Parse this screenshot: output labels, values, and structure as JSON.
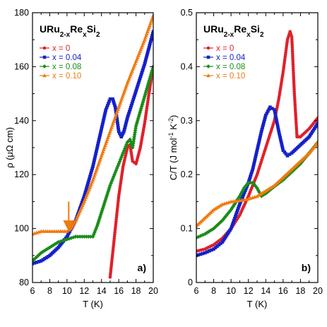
{
  "chart_data": [
    {
      "type": "line",
      "panel_label": "a)",
      "title_parts": [
        "URu",
        "2-x",
        "Re",
        "x",
        "Si",
        "2"
      ],
      "xlabel": "T (K)",
      "ylabel_parts": [
        "ρ (",
        "μΩ",
        " cm)"
      ],
      "xlim": [
        6,
        20
      ],
      "ylim": [
        80,
        180
      ],
      "xticks": [
        "6",
        "8",
        "10",
        "12",
        "14",
        "16",
        "18",
        "20"
      ],
      "yticks": [
        "80",
        "100",
        "120",
        "140",
        "160",
        "180"
      ],
      "legend_position": "top-left",
      "series": [
        {
          "name": "x = 0",
          "color": "#e0202a",
          "marker": "circle",
          "x": [
            15.0,
            15.5,
            16.0,
            16.5,
            17.0,
            17.3,
            17.6,
            18.0,
            18.5,
            19.0,
            19.5,
            20.0
          ],
          "y": [
            82,
            97,
            112,
            123,
            130,
            131,
            125,
            124,
            130,
            139,
            150,
            160
          ]
        },
        {
          "name": "x = 0.04",
          "color": "#1520c8",
          "marker": "square",
          "x": [
            6.0,
            7.0,
            8.0,
            9.0,
            10.0,
            11.0,
            12.0,
            13.0,
            14.0,
            14.5,
            15.0,
            15.3,
            15.6,
            16.0,
            16.3,
            16.6,
            17.0,
            18.0,
            19.0,
            20.0
          ],
          "y": [
            87,
            88,
            90,
            93,
            97,
            103,
            112,
            123,
            137,
            144,
            148,
            148,
            145,
            136,
            134,
            136,
            141,
            151,
            161,
            173
          ]
        },
        {
          "name": "x = 0.08",
          "color": "#1a8c1a",
          "marker": "diamond",
          "x": [
            6.0,
            7.0,
            8.0,
            9.0,
            10.0,
            11.0,
            12.0,
            12.5,
            13.0,
            13.5,
            14.0,
            14.5,
            15.0,
            15.5,
            16.0,
            16.5,
            17.0,
            17.3,
            17.6,
            18.0,
            19.0,
            20.0
          ],
          "y": [
            88,
            91,
            93,
            95,
            96,
            97,
            97,
            97,
            97,
            101,
            106,
            111,
            116,
            120,
            124,
            128,
            132,
            133,
            130,
            138,
            149,
            160
          ]
        },
        {
          "name": "x = 0.10",
          "color": "#f07a10",
          "marker": "triangle",
          "x": [
            6.0,
            7.0,
            8.0,
            9.0,
            10.0,
            10.5,
            11.0,
            12.0,
            13.0,
            14.0,
            15.0,
            16.0,
            17.0,
            18.0,
            19.0,
            20.0
          ],
          "y": [
            98,
            99,
            99,
            99,
            99,
            100,
            103,
            110,
            118,
            127,
            136,
            145,
            154,
            162,
            170,
            179
          ]
        }
      ],
      "annotation": {
        "type": "arrow",
        "x": 10.2,
        "y_from": 110,
        "y_to": 101,
        "color": "#f07a10"
      }
    },
    {
      "type": "line",
      "panel_label": "b)",
      "title_parts": [
        "URu",
        "2-x",
        "Re",
        "x",
        "Si",
        "2"
      ],
      "xlabel": "T (K)",
      "ylabel_parts": [
        "C/T (J mol",
        "-1",
        " K",
        "-2",
        ")"
      ],
      "xlim": [
        6,
        20
      ],
      "ylim": [
        0,
        0.5
      ],
      "xticks": [
        "6",
        "8",
        "10",
        "12",
        "14",
        "16",
        "18",
        "20"
      ],
      "yticks": [
        "0",
        "0.1",
        "0.2",
        "0.3",
        "0.4",
        "0.5"
      ],
      "legend_position": "top-left",
      "series": [
        {
          "name": "x = 0",
          "color": "#e0202a",
          "marker": "circle",
          "x": [
            6.0,
            7.0,
            8.0,
            9.0,
            10.0,
            11.0,
            12.0,
            13.0,
            14.0,
            15.0,
            15.5,
            16.0,
            16.5,
            16.8,
            17.0,
            17.3,
            17.6,
            18.0,
            19.0,
            20.0
          ],
          "y": [
            0.058,
            0.062,
            0.07,
            0.082,
            0.1,
            0.125,
            0.16,
            0.2,
            0.25,
            0.3,
            0.34,
            0.39,
            0.45,
            0.465,
            0.455,
            0.35,
            0.27,
            0.27,
            0.285,
            0.305
          ]
        },
        {
          "name": "x = 0.04",
          "color": "#1520c8",
          "marker": "square",
          "x": [
            6.0,
            7.0,
            8.0,
            9.0,
            10.0,
            11.0,
            12.0,
            12.5,
            13.0,
            13.5,
            14.0,
            14.5,
            15.0,
            15.5,
            16.0,
            16.5,
            17.0,
            18.0,
            19.0,
            20.0
          ],
          "y": [
            0.05,
            0.055,
            0.062,
            0.075,
            0.1,
            0.145,
            0.185,
            0.21,
            0.245,
            0.28,
            0.31,
            0.325,
            0.32,
            0.28,
            0.245,
            0.235,
            0.24,
            0.255,
            0.27,
            0.295
          ]
        },
        {
          "name": "x = 0.08",
          "color": "#1a8c1a",
          "marker": "diamond",
          "x": [
            6.0,
            7.0,
            8.0,
            9.0,
            10.0,
            11.0,
            11.5,
            12.0,
            12.5,
            13.0,
            13.5,
            14.0,
            15.0,
            16.0,
            17.0,
            18.0,
            19.0,
            20.0
          ],
          "y": [
            0.083,
            0.09,
            0.1,
            0.115,
            0.135,
            0.16,
            0.175,
            0.185,
            0.185,
            0.175,
            0.16,
            0.165,
            0.178,
            0.19,
            0.205,
            0.22,
            0.24,
            0.26
          ]
        },
        {
          "name": "x = 0.10",
          "color": "#f07a10",
          "marker": "triangle",
          "x": [
            6.0,
            7.0,
            8.0,
            9.0,
            10.0,
            11.0,
            12.0,
            13.0,
            14.0,
            15.0,
            16.0,
            17.0,
            18.0,
            19.0,
            20.0
          ],
          "y": [
            0.105,
            0.12,
            0.135,
            0.145,
            0.15,
            0.152,
            0.155,
            0.16,
            0.17,
            0.18,
            0.195,
            0.21,
            0.225,
            0.24,
            0.26
          ]
        }
      ]
    }
  ]
}
